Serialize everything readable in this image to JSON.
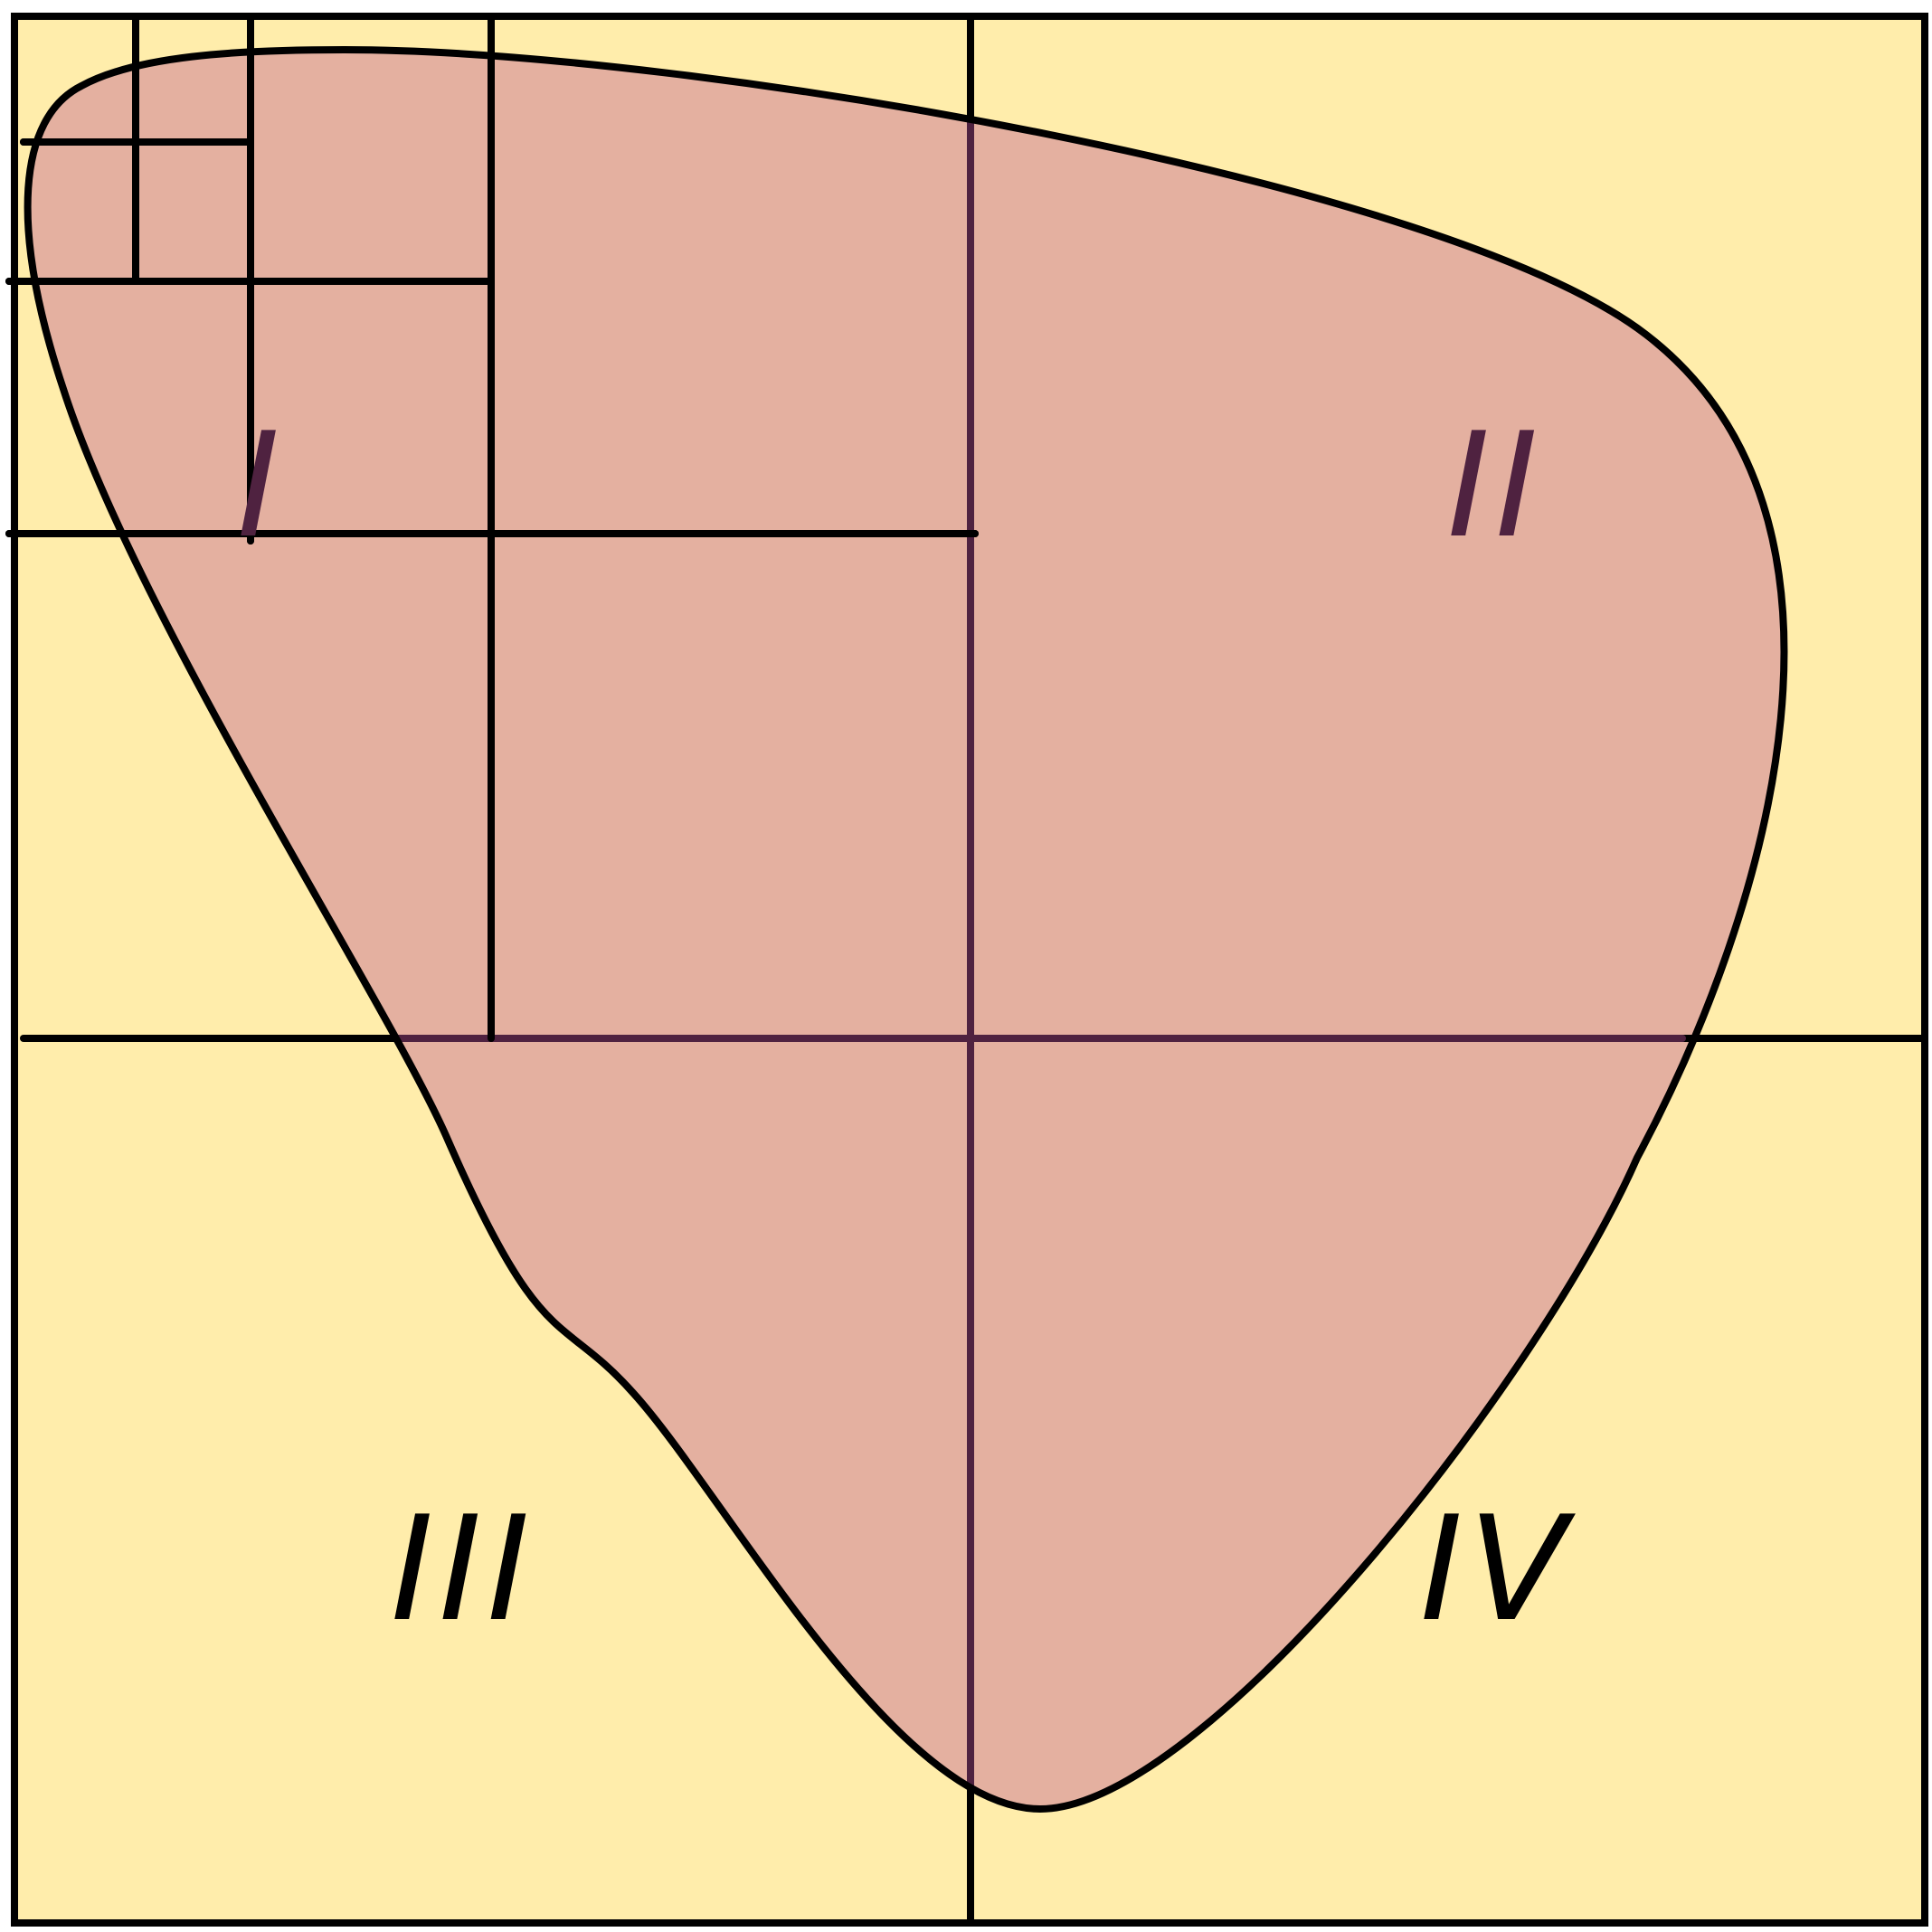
{
  "colors": {
    "background": "#ffedab",
    "shape_fill": "#e4b0a0",
    "outline": "#000000",
    "inner_line": "#4f2240",
    "label_inside": "#4f2240",
    "label_outside": "#000000"
  },
  "labels": {
    "region_1": "I",
    "region_2": "II",
    "region_3": "III",
    "region_4": "IV"
  }
}
